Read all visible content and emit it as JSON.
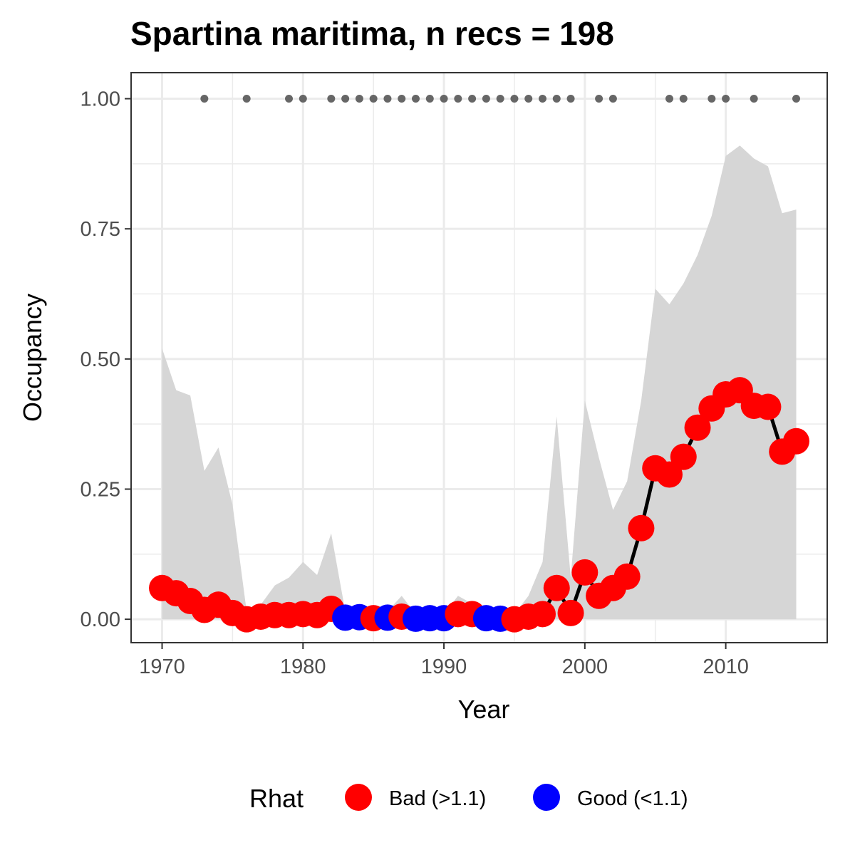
{
  "chart_data": {
    "type": "line",
    "title": "Spartina maritima, n recs = 198",
    "xlabel": "Year",
    "ylabel": "Occupancy",
    "xlim": [
      1967.8,
      2017.2
    ],
    "ylim": [
      -0.045,
      1.05
    ],
    "x_ticks": [
      1970,
      1980,
      1990,
      2000,
      2010
    ],
    "x_tick_labels": [
      "1970",
      "1980",
      "1990",
      "2000",
      "2010"
    ],
    "y_ticks": [
      0,
      0.25,
      0.5,
      0.75,
      1
    ],
    "y_tick_labels": [
      "0.00",
      "0.25",
      "0.50",
      "0.75",
      "1.00"
    ],
    "grid": true,
    "legend": {
      "title": "Rhat",
      "position": "bottom",
      "entries": [
        {
          "label": "Bad (>1.1)",
          "color": "#ff0000"
        },
        {
          "label": "Good (<1.1)",
          "color": "#0000ff"
        }
      ]
    },
    "colors": {
      "bad": "#ff0000",
      "good": "#0000ff",
      "line": "#000000",
      "ribbon": "#d6d6d6",
      "records": "#666666"
    },
    "series": [
      {
        "x": [
          1970,
          1971,
          1972,
          1973,
          1974,
          1975,
          1976,
          1977,
          1978,
          1979,
          1980,
          1981,
          1982,
          1983,
          1984,
          1985,
          1986,
          1987,
          1988,
          1989,
          1990,
          1991,
          1992,
          1993,
          1994,
          1995,
          1996,
          1997,
          1998,
          1999,
          2000,
          2001,
          2002,
          2003,
          2004,
          2005,
          2006,
          2007,
          2008,
          2009,
          2010,
          2011,
          2012,
          2013,
          2014,
          2015
        ],
        "y": [
          0.06,
          0.05,
          0.035,
          0.018,
          0.028,
          0.012,
          0.0,
          0.005,
          0.008,
          0.008,
          0.01,
          0.008,
          0.02,
          0.003,
          0.004,
          0.002,
          0.003,
          0.005,
          0.001,
          0.002,
          0.002,
          0.01,
          0.01,
          0.002,
          0.001,
          0.0,
          0.005,
          0.01,
          0.06,
          0.012,
          0.09,
          0.045,
          0.06,
          0.082,
          0.175,
          0.29,
          0.278,
          0.312,
          0.368,
          0.405,
          0.432,
          0.44,
          0.41,
          0.408,
          0.322,
          0.342
        ],
        "rhat": [
          "Bad",
          "Bad",
          "Bad",
          "Bad",
          "Bad",
          "Bad",
          "Bad",
          "Bad",
          "Bad",
          "Bad",
          "Bad",
          "Bad",
          "Bad",
          "Good",
          "Good",
          "Bad",
          "Good",
          "Bad",
          "Good",
          "Good",
          "Good",
          "Bad",
          "Bad",
          "Good",
          "Good",
          "Bad",
          "Bad",
          "Bad",
          "Bad",
          "Bad",
          "Bad",
          "Bad",
          "Bad",
          "Bad",
          "Bad",
          "Bad",
          "Bad",
          "Bad",
          "Bad",
          "Bad",
          "Bad",
          "Bad",
          "Bad",
          "Bad",
          "Bad",
          "Bad"
        ],
        "lower": [
          0,
          0,
          0,
          0,
          0,
          0,
          0,
          0,
          0,
          0,
          0,
          0,
          0,
          0,
          0,
          0,
          0,
          0,
          0,
          0,
          0,
          0,
          0,
          0,
          0,
          0,
          0,
          0,
          0,
          0,
          0,
          0,
          0,
          0,
          0,
          0,
          0,
          0,
          0,
          0,
          0,
          0,
          0,
          0,
          0,
          0
        ],
        "upper": [
          0.52,
          0.44,
          0.43,
          0.285,
          0.33,
          0.22,
          0.015,
          0.028,
          0.065,
          0.08,
          0.11,
          0.085,
          0.165,
          0.015,
          0.012,
          0.01,
          0.015,
          0.045,
          0.01,
          0.012,
          0.01,
          0.045,
          0.03,
          0.01,
          0.01,
          0.01,
          0.045,
          0.11,
          0.39,
          0.08,
          0.42,
          0.31,
          0.21,
          0.265,
          0.42,
          0.635,
          0.605,
          0.645,
          0.7,
          0.775,
          0.89,
          0.91,
          0.885,
          0.87,
          0.78,
          0.787
        ]
      }
    ],
    "record_years": [
      1973,
      1976,
      1979,
      1980,
      1982,
      1983,
      1984,
      1985,
      1986,
      1987,
      1988,
      1989,
      1990,
      1991,
      1992,
      1993,
      1994,
      1995,
      1996,
      1997,
      1998,
      1999,
      2001,
      2002,
      2006,
      2007,
      2009,
      2010,
      2012,
      2015
    ],
    "record_value": 1.0
  }
}
